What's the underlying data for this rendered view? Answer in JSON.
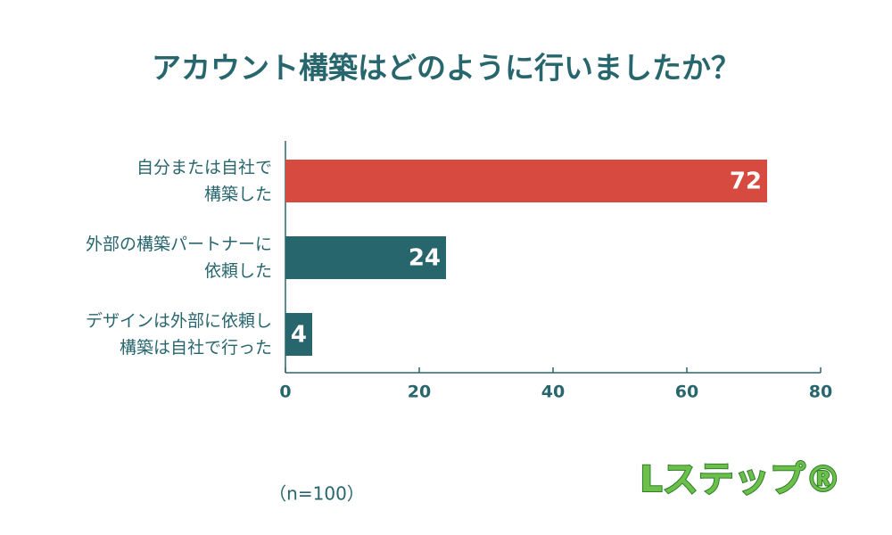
{
  "chart_data": {
    "type": "barh",
    "title": "アカウント構築はどのように行いましたか？",
    "categories": [
      "自分または自社で\n構築した",
      "外部の構築パートナーに\n依頼した",
      "デザインは外部に依頼し\n構築は自社で行った"
    ],
    "values": [
      72,
      24,
      4
    ],
    "colors": [
      "#d64a40",
      "#28666e",
      "#28666e"
    ],
    "xlim": [
      0,
      80
    ],
    "xticks": [
      0,
      20,
      40,
      60,
      80
    ],
    "note": "（n=100）",
    "logo": "Lステップ®"
  }
}
